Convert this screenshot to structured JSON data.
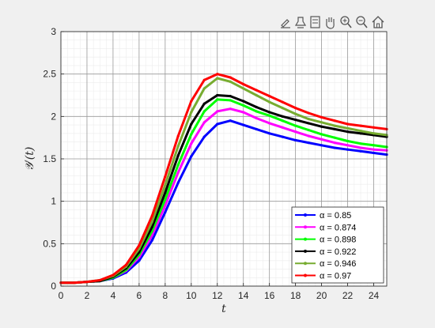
{
  "toolbar": {
    "icons": [
      "brush-icon",
      "data-tips-icon",
      "legend-icon",
      "pan-icon",
      "zoom-in-icon",
      "zoom-out-icon",
      "home-icon"
    ]
  },
  "chart_data": {
    "type": "line",
    "xlabel": "t",
    "ylabel": "𝒴′(t)",
    "xlim": [
      0,
      25
    ],
    "ylim": [
      0,
      3
    ],
    "xticks": [
      0,
      2,
      4,
      6,
      8,
      10,
      12,
      14,
      16,
      18,
      20,
      22,
      24
    ],
    "yticks": [
      0,
      0.5,
      1,
      1.5,
      2,
      2.5,
      3
    ],
    "xtick_labels": [
      "0",
      "2",
      "4",
      "6",
      "8",
      "10",
      "12",
      "14",
      "16",
      "18",
      "20",
      "22",
      "24"
    ],
    "ytick_labels": [
      "0",
      "0.5",
      "1",
      "1.5",
      "2",
      "2.5",
      "3"
    ],
    "grid": true,
    "minor_grid": true,
    "legend_position": "bottom-right",
    "x": [
      0,
      1,
      2,
      3,
      4,
      5,
      6,
      7,
      8,
      9,
      10,
      11,
      12,
      13,
      14,
      15,
      16,
      17,
      18,
      19,
      20,
      21,
      22,
      23,
      24,
      25
    ],
    "series": [
      {
        "name": "α = 0.85",
        "color": "#0000ff",
        "values": [
          0.04,
          0.04,
          0.05,
          0.06,
          0.09,
          0.16,
          0.3,
          0.54,
          0.87,
          1.22,
          1.53,
          1.76,
          1.91,
          1.95,
          1.9,
          1.85,
          1.8,
          1.76,
          1.72,
          1.69,
          1.66,
          1.63,
          1.61,
          1.59,
          1.57,
          1.55
        ]
      },
      {
        "name": "α = 0.874",
        "color": "#ff00ff",
        "values": [
          0.04,
          0.04,
          0.05,
          0.06,
          0.1,
          0.18,
          0.34,
          0.6,
          0.95,
          1.34,
          1.68,
          1.93,
          2.06,
          2.09,
          2.05,
          1.98,
          1.92,
          1.87,
          1.82,
          1.77,
          1.73,
          1.69,
          1.66,
          1.63,
          1.61,
          1.6
        ]
      },
      {
        "name": "α = 0.898",
        "color": "#00ff00",
        "values": [
          0.04,
          0.04,
          0.05,
          0.06,
          0.1,
          0.19,
          0.37,
          0.65,
          1.02,
          1.43,
          1.79,
          2.06,
          2.2,
          2.19,
          2.13,
          2.06,
          2.01,
          1.95,
          1.89,
          1.84,
          1.79,
          1.75,
          1.71,
          1.68,
          1.66,
          1.64
        ]
      },
      {
        "name": "α = 0.922",
        "color": "#000000",
        "values": [
          0.04,
          0.04,
          0.05,
          0.06,
          0.11,
          0.21,
          0.4,
          0.7,
          1.1,
          1.54,
          1.91,
          2.15,
          2.25,
          2.24,
          2.18,
          2.11,
          2.05,
          2.0,
          1.96,
          1.92,
          1.88,
          1.85,
          1.82,
          1.8,
          1.78,
          1.76
        ]
      },
      {
        "name": "α = 0.946",
        "color": "#77ac30",
        "values": [
          0.04,
          0.04,
          0.05,
          0.07,
          0.12,
          0.23,
          0.44,
          0.76,
          1.19,
          1.65,
          2.05,
          2.33,
          2.45,
          2.41,
          2.33,
          2.25,
          2.17,
          2.1,
          2.03,
          1.97,
          1.93,
          1.89,
          1.86,
          1.83,
          1.8,
          1.78
        ]
      },
      {
        "name": "α = 0.97",
        "color": "#ff0000",
        "values": [
          0.04,
          0.04,
          0.05,
          0.07,
          0.13,
          0.25,
          0.48,
          0.83,
          1.29,
          1.77,
          2.18,
          2.43,
          2.5,
          2.46,
          2.38,
          2.31,
          2.24,
          2.17,
          2.1,
          2.04,
          1.99,
          1.95,
          1.91,
          1.89,
          1.87,
          1.85
        ]
      }
    ]
  }
}
